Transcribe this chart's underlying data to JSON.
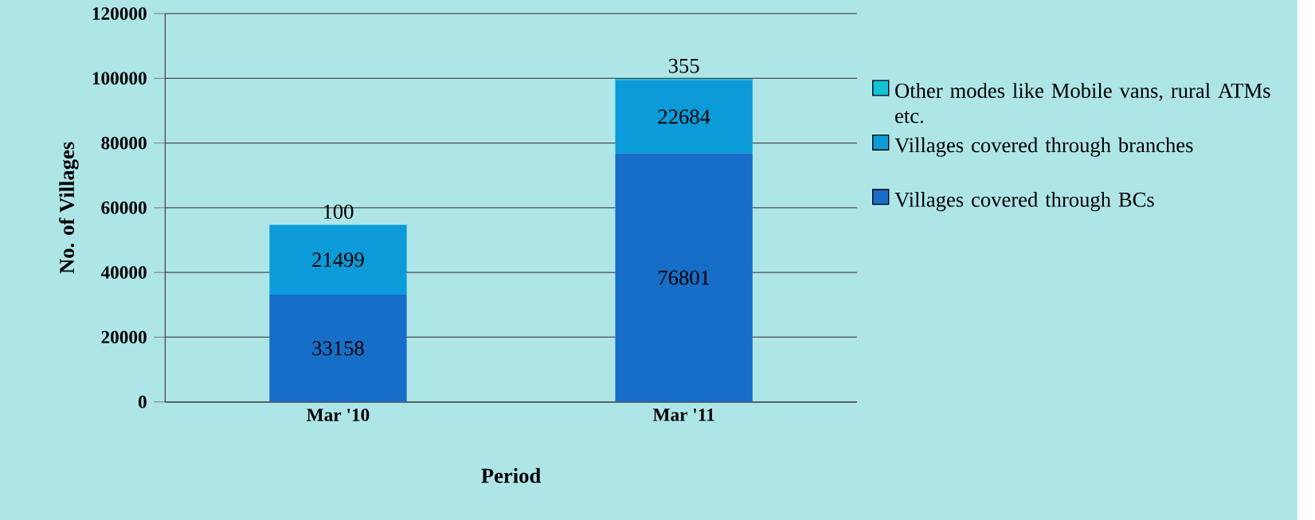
{
  "chart_data": {
    "type": "bar",
    "stacked": true,
    "xlabel": "Period",
    "ylabel": "No. of Villages",
    "categories": [
      "Mar '10",
      "Mar '11"
    ],
    "series": [
      {
        "name": "Villages covered through BCs",
        "color": "#166ec8",
        "values": [
          33158,
          76801
        ]
      },
      {
        "name": "Villages covered through branches",
        "color": "#0a9bd8",
        "values": [
          21499,
          22684
        ]
      },
      {
        "name": "Other modes like Mobile vans, rural ATMs etc.",
        "color": "#12c3d9",
        "values": [
          100,
          355
        ]
      }
    ],
    "ylim": [
      0,
      120000
    ],
    "yticks": [
      0,
      20000,
      40000,
      60000,
      80000,
      100000,
      120000
    ],
    "grid": "y",
    "legend": "right",
    "data_labels": true
  }
}
